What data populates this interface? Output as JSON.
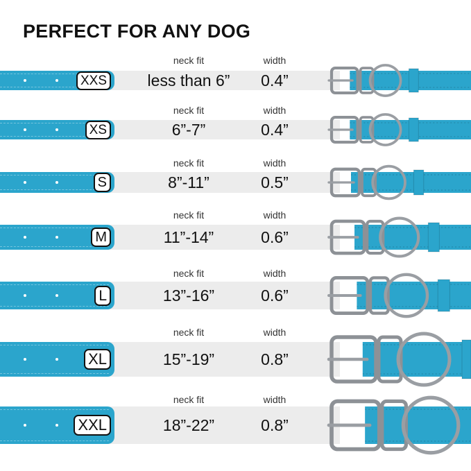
{
  "title": "PERFECT FOR ANY DOG",
  "neck_fit_label": "neck fit",
  "width_label": "width",
  "colors": {
    "collar": "#2ba5cc",
    "band": "#ececec",
    "hardware": "#c9ccd0"
  },
  "sizes": [
    {
      "size": "XXS",
      "neck_fit": "less than 6”",
      "width": "0.4”"
    },
    {
      "size": "XS",
      "neck_fit": "6”-7”",
      "width": "0.4”"
    },
    {
      "size": "S",
      "neck_fit": "8”-11”",
      "width": "0.5”"
    },
    {
      "size": "M",
      "neck_fit": "11”-14”",
      "width": "0.6”"
    },
    {
      "size": "L",
      "neck_fit": "13”-16”",
      "width": "0.6”"
    },
    {
      "size": "XL",
      "neck_fit": "15”-19”",
      "width": "0.8”"
    },
    {
      "size": "XXL",
      "neck_fit": "18”-22”",
      "width": "0.8”"
    }
  ]
}
